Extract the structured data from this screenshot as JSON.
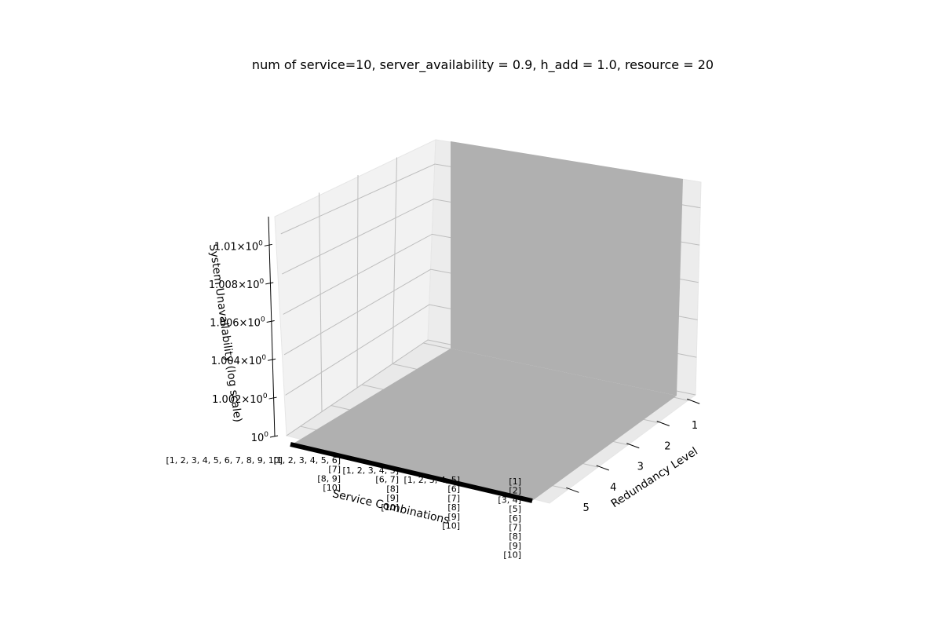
{
  "chart_data": {
    "type": "surface",
    "title": "num of service=10, server_availability = 0.9, h_add = 1.0, resource = 20",
    "xlabel": "Service Combinations",
    "ylabel": "Redundancy Level",
    "zlabel": "System Unavailability (log scale)",
    "z_scale": "log",
    "zlim": [
      1.0,
      1.011
    ],
    "grid": true,
    "z_ticks": [
      {
        "value": 1.0,
        "label": "10",
        "exp": "0",
        "mult": ""
      },
      {
        "value": 1.002,
        "label": "1.002",
        "exp": "0",
        "mult": "×10"
      },
      {
        "value": 1.004,
        "label": "1.004",
        "exp": "0",
        "mult": "×10"
      },
      {
        "value": 1.006,
        "label": "1.006",
        "exp": "0",
        "mult": "×10"
      },
      {
        "value": 1.008,
        "label": "1.008",
        "exp": "0",
        "mult": "×10"
      },
      {
        "value": 1.01,
        "label": "1.01",
        "exp": "0",
        "mult": "×10"
      }
    ],
    "y_ticks": [
      "1",
      "2",
      "3",
      "4",
      "5"
    ],
    "x_tick_groups": [
      {
        "lines": [
          "[1, 2, 3, 4, 5, 6, 7, 8, 9, 10]"
        ]
      },
      {
        "lines": [
          "[1, 2, 3, 4, 5, 6]",
          "[7]",
          "[8, 9]",
          "[10]"
        ]
      },
      {
        "lines": [
          "[1, 2, 3, 4, 5]",
          "[6, 7]",
          "[8]",
          "[9]",
          "[10]"
        ]
      },
      {
        "lines": [
          "[1, 2, 3, 4, 5]",
          "[6]",
          "[7]",
          "[8]",
          "[9]",
          "[10]"
        ]
      },
      {
        "lines": [
          "[1]",
          "[2]",
          "[3, 4]",
          "[5]",
          "[6]",
          "[7]",
          "[8]",
          "[9]",
          "[10]"
        ]
      }
    ],
    "surface": {
      "color": "#b0b0b0",
      "description_values": {
        "floor_value": 1.0,
        "wall_value": 1.01,
        "wall_at_service_combination_index": 0
      }
    }
  }
}
